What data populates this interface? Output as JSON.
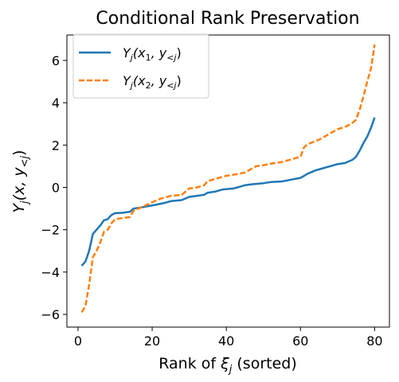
{
  "chart_data": {
    "type": "line",
    "title": "Conditional Rank Preservation",
    "xlabel": {
      "pre": "Rank of ",
      "sym": "ξ",
      "sub": "j",
      "post": " (sorted)"
    },
    "ylabel": {
      "sym": "Y",
      "sub": "j",
      "args": "(x, y",
      "argsub": "<j",
      "close": ")"
    },
    "xlim": [
      -3,
      84
    ],
    "ylim": [
      -6.6,
      7.2
    ],
    "xticks": [
      0,
      20,
      40,
      60,
      80
    ],
    "yticks": [
      -6,
      -4,
      -2,
      0,
      2,
      4,
      6
    ],
    "xtick_labels": [
      "0",
      "20",
      "40",
      "60",
      "80"
    ],
    "ytick_labels": [
      "−6",
      "−4",
      "−2",
      "0",
      "2",
      "4",
      "6"
    ],
    "legend_position": "top-left",
    "grid": false,
    "series": [
      {
        "name": {
          "sym": "Y",
          "sub": "j",
          "args": "(x",
          "asub": "1",
          "mid": ", y",
          "argsub": "<j",
          "close": ")"
        },
        "color": "#1f77b4",
        "style": "solid",
        "x": [
          1,
          2,
          3,
          4,
          5,
          6,
          7,
          8,
          9,
          10,
          12,
          14,
          15,
          17,
          20,
          23,
          25,
          28,
          30,
          32,
          34,
          35,
          37,
          39,
          42,
          45,
          47,
          50,
          52,
          55,
          57,
          60,
          62,
          64,
          66,
          68,
          70,
          72,
          74,
          75,
          76,
          77,
          78,
          79,
          80
        ],
        "y": [
          -3.7,
          -3.5,
          -3.0,
          -2.2,
          -2.0,
          -1.8,
          -1.55,
          -1.5,
          -1.3,
          -1.22,
          -1.2,
          -1.15,
          -1.0,
          -0.95,
          -0.85,
          -0.75,
          -0.65,
          -0.6,
          -0.45,
          -0.4,
          -0.35,
          -0.25,
          -0.2,
          -0.1,
          -0.05,
          0.1,
          0.15,
          0.2,
          0.25,
          0.28,
          0.35,
          0.45,
          0.65,
          0.8,
          0.9,
          1.0,
          1.1,
          1.15,
          1.3,
          1.45,
          1.75,
          2.1,
          2.4,
          2.8,
          3.3
        ]
      },
      {
        "name": {
          "sym": "Y",
          "sub": "j",
          "args": "(x",
          "asub": "2",
          "mid": ", y",
          "argsub": "<j",
          "close": ")"
        },
        "color": "#ff7f0e",
        "style": "dashed",
        "x": [
          1,
          2,
          3,
          4,
          5,
          6,
          7,
          8,
          9,
          10,
          12,
          14,
          15,
          17,
          20,
          22,
          25,
          28,
          30,
          32,
          34,
          35,
          37,
          40,
          42,
          45,
          48,
          50,
          53,
          55,
          58,
          60,
          61,
          62,
          65,
          68,
          70,
          72,
          74,
          75,
          76,
          77,
          78,
          79,
          80
        ],
        "y": [
          -5.9,
          -5.6,
          -4.6,
          -3.3,
          -3.0,
          -2.6,
          -2.1,
          -2.0,
          -1.7,
          -1.5,
          -1.45,
          -1.4,
          -1.1,
          -0.95,
          -0.7,
          -0.55,
          -0.4,
          -0.35,
          -0.05,
          0.0,
          0.1,
          0.3,
          0.4,
          0.55,
          0.6,
          0.7,
          1.0,
          1.05,
          1.15,
          1.2,
          1.35,
          1.45,
          1.9,
          2.05,
          2.25,
          2.55,
          2.75,
          2.85,
          3.05,
          3.2,
          3.7,
          4.3,
          5.0,
          5.6,
          6.75
        ]
      }
    ]
  }
}
